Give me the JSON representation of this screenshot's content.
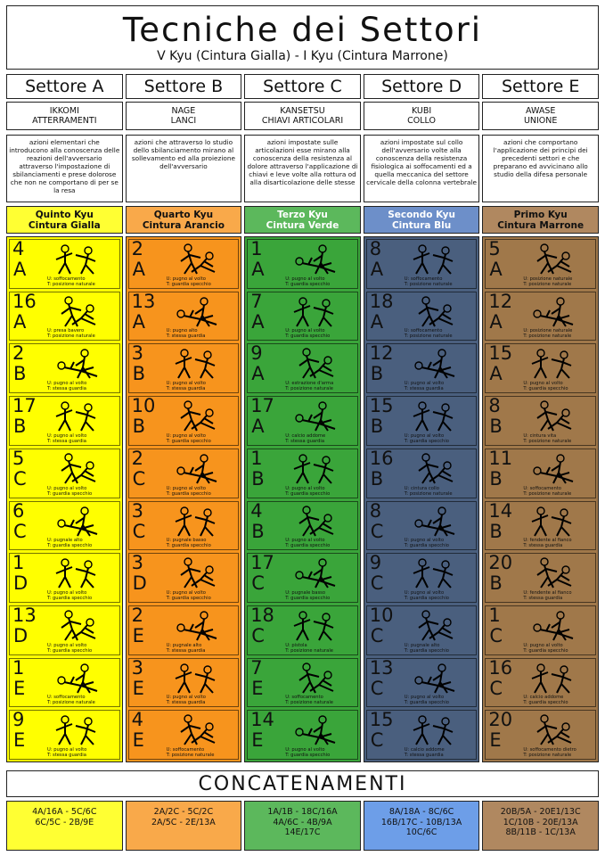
{
  "header": {
    "title": "Tecniche dei Settori",
    "subtitle": "V Kyu (Cintura Gialla)  - I Kyu (Cintura Marrone)"
  },
  "sectors": [
    {
      "name": "Settore A",
      "sub1": "IKKOMI",
      "sub2": "ATTERRAMENTI",
      "desc": "azioni elementari che introducono alla conoscenza delle reazioni dell'avversario attraverso l'impostazione di sbilanciamenti e prese dolorose che non ne comportano di per se la resa"
    },
    {
      "name": "Settore B",
      "sub1": "NAGE",
      "sub2": "LANCI",
      "desc": "azioni che attraverso lo studio dello sbilanciamento mirano al sollevamento ed alla proiezione dell'avversario"
    },
    {
      "name": "Settore C",
      "sub1": "KANSETSU",
      "sub2": "CHIAVI ARTICOLARI",
      "desc": "azioni impostate sulle articolazioni esse mirano alla conoscenza della resistenza al dolore attraverso l'applicazione di chiavi e leve volte alla rottura od alla disarticolazione delle stesse"
    },
    {
      "name": "Settore D",
      "sub1": "KUBI",
      "sub2": "COLLO",
      "desc": "azioni impostate sul collo dell'avversario volte alla conoscenza della resistenza fisiologica ai soffocamenti ed a quella meccanica del settore cervicale della colonna vertebrale"
    },
    {
      "name": "Settore E",
      "sub1": "AWASE",
      "sub2": "UNIONE",
      "desc": "azioni che comportano l'applicazione dei principi dei precedenti settori e che preparano ed avvicinano allo studio della difesa personale"
    }
  ],
  "belts": [
    {
      "l1": "Quinto Kyu",
      "l2": "Cintura Gialla",
      "color": "#ffff00",
      "hcolor": "#ffff33"
    },
    {
      "l1": "Quarto Kyu",
      "l2": "Cintura Arancio",
      "color": "#f7941d",
      "hcolor": "#f9a94a"
    },
    {
      "l1": "Terzo Kyu",
      "l2": "Cintura Verde",
      "color": "#3aa53a",
      "hcolor": "#5cb85c"
    },
    {
      "l1": "Secondo Kyu",
      "l2": "Cintura Blu",
      "color": "#4a5f7e",
      "hcolor": "#6d8fc9"
    },
    {
      "l1": "Primo Kyu",
      "l2": "Cintura Marrone",
      "color": "#a0784a",
      "hcolor": "#b08860"
    }
  ],
  "techniques": [
    [
      {
        "n": "4",
        "l": "A",
        "u": "U: soffocamento",
        "t": "T: posizione naturale"
      },
      {
        "n": "16",
        "l": "A",
        "u": "U: presa bavero",
        "t": "T: posizione naturale"
      },
      {
        "n": "2",
        "l": "B",
        "u": "U: pugno al volto",
        "t": "T: stessa guardia"
      },
      {
        "n": "17",
        "l": "B",
        "u": "U: pugno al volto",
        "t": "T: stessa guardia"
      },
      {
        "n": "5",
        "l": "C",
        "u": "U: pugno al volto",
        "t": "T: guardia specchio"
      },
      {
        "n": "6",
        "l": "C",
        "u": "U: pugnale alto",
        "t": "T: guardia specchio"
      },
      {
        "n": "1",
        "l": "D",
        "u": "U: pugno al volto",
        "t": "T: guardia specchio"
      },
      {
        "n": "13",
        "l": "D",
        "u": "U: pugno al volto",
        "t": "T: guardia specchio"
      },
      {
        "n": "1",
        "l": "E",
        "u": "U: soffocamento",
        "t": "T: posizione naturale"
      },
      {
        "n": "9",
        "l": "E",
        "u": "U: pugno al volto",
        "t": "T: stessa guardia"
      }
    ],
    [
      {
        "n": "2",
        "l": "A",
        "u": "U: pugno al volto",
        "t": "T: guardia specchio"
      },
      {
        "n": "13",
        "l": "A",
        "u": "U: pugno alto",
        "t": "T: stessa guardia"
      },
      {
        "n": "3",
        "l": "B",
        "u": "U: pugno al volto",
        "t": "T: stessa guardia"
      },
      {
        "n": "10",
        "l": "B",
        "u": "U: pugno al volto",
        "t": "T: guardia specchio"
      },
      {
        "n": "2",
        "l": "C",
        "u": "U: pugno al volto",
        "t": "T: guardia specchio"
      },
      {
        "n": "3",
        "l": "C",
        "u": "U: pugnale basso",
        "t": "T: guardia specchio"
      },
      {
        "n": "3",
        "l": "D",
        "u": "U: pugno al volto",
        "t": "T: guardia specchio"
      },
      {
        "n": "2",
        "l": "E",
        "u": "U: pugnale alto",
        "t": "T: stessa guardia"
      },
      {
        "n": "3",
        "l": "E",
        "u": "U: pugno al volto",
        "t": "T: stessa guardia"
      },
      {
        "n": "4",
        "l": "E",
        "u": "U: soffocamento",
        "t": "T: posizione naturale"
      }
    ],
    [
      {
        "n": "1",
        "l": "A",
        "u": "U: pugno al volto",
        "t": "T: guardia specchio"
      },
      {
        "n": "7",
        "l": "A",
        "u": "U: pugno al volto",
        "t": "T: guardia specchio"
      },
      {
        "n": "9",
        "l": "A",
        "u": "U: estrazione d'arma",
        "t": "T: posizione naturale"
      },
      {
        "n": "17",
        "l": "A",
        "u": "U: calcio addome",
        "t": "T: stessa guardia"
      },
      {
        "n": "1",
        "l": "B",
        "u": "U: pugno al volto",
        "t": "T: guardia specchio"
      },
      {
        "n": "4",
        "l": "B",
        "u": "U: pugno al volto",
        "t": "T: guardia specchio"
      },
      {
        "n": "17",
        "l": "C",
        "u": "U: pugnale basso",
        "t": "T: guardia specchio"
      },
      {
        "n": "18",
        "l": "C",
        "u": "U: pistola",
        "t": "T: posizione naturale"
      },
      {
        "n": "7",
        "l": "E",
        "u": "U: soffocamento",
        "t": "T: posizione naturale"
      },
      {
        "n": "14",
        "l": "E",
        "u": "U: pugno al volto",
        "t": "T: guardia specchio"
      }
    ],
    [
      {
        "n": "8",
        "l": "A",
        "u": "U: soffocamento",
        "t": "T: posizione naturale"
      },
      {
        "n": "18",
        "l": "A",
        "u": "U: soffocamento",
        "t": "T: posizione naturale"
      },
      {
        "n": "12",
        "l": "B",
        "u": "U: pugno al volto",
        "t": "T: stessa guardia"
      },
      {
        "n": "15",
        "l": "B",
        "u": "U: pugno al volto",
        "t": "T: guardia specchio"
      },
      {
        "n": "16",
        "l": "B",
        "u": "U: cintura collo",
        "t": "T: posizione naturale"
      },
      {
        "n": "8",
        "l": "C",
        "u": "U: pugno al volto",
        "t": "T: guardia specchio"
      },
      {
        "n": "9",
        "l": "C",
        "u": "U: pugno al volto",
        "t": "T: guardia specchio"
      },
      {
        "n": "10",
        "l": "C",
        "u": "U: pugnale alto",
        "t": "T: guardia specchio"
      },
      {
        "n": "13",
        "l": "C",
        "u": "U: pugno al volto",
        "t": "T: guardia specchio"
      },
      {
        "n": "15",
        "l": "C",
        "u": "U: calcio addome",
        "t": "T: stessa guardia"
      }
    ],
    [
      {
        "n": "5",
        "l": "A",
        "u": "U: posizione naturale",
        "t": "T: posizione naturale"
      },
      {
        "n": "12",
        "l": "A",
        "u": "U: posizione naturale",
        "t": "T: posizione naturale"
      },
      {
        "n": "15",
        "l": "A",
        "u": "U: pugno al volto",
        "t": "T: guardia specchio"
      },
      {
        "n": "8",
        "l": "B",
        "u": "U: cintura vita",
        "t": "T: posizione naturale"
      },
      {
        "n": "11",
        "l": "B",
        "u": "U: soffocamento",
        "t": "T: posizione naturale"
      },
      {
        "n": "14",
        "l": "B",
        "u": "U: fendente al fianco",
        "t": "T: stessa guardia"
      },
      {
        "n": "20",
        "l": "B",
        "u": "U: fendente al fianco",
        "t": "T: stessa guardia"
      },
      {
        "n": "1",
        "l": "C",
        "u": "U: pugno al volto",
        "t": "T: guardia specchio"
      },
      {
        "n": "16",
        "l": "C",
        "u": "U: calcio addome",
        "t": "T: guardia specchio"
      },
      {
        "n": "20",
        "l": "E",
        "u": "U: soffocamento dietro",
        "t": "T: posizione naturale"
      }
    ]
  ],
  "concatenamenti": {
    "title": "CONCATENAMENTI",
    "chains": [
      {
        "l1": "4A/16A - 5C/6C",
        "l2": "6C/5C - 2B/9E",
        "l3": "",
        "color": "#ffff33"
      },
      {
        "l1": "2A/2C - 5C/2C",
        "l2": "2A/5C - 2E/13A",
        "l3": "",
        "color": "#f9a94a"
      },
      {
        "l1": "1A/1B - 18C/16A",
        "l2": "4A/6C - 4B/9A",
        "l3": "14E/17C",
        "color": "#5cb85c"
      },
      {
        "l1": "8A/18A - 8C/6C",
        "l2": "16B/17C - 10B/13A",
        "l3": "10C/6C",
        "color": "#6d9ee8"
      },
      {
        "l1": "20B/5A - 20E1/13C",
        "l2": "1C/10B - 20E/13A",
        "l3": "8B/11B - 1C/13A",
        "color": "#b08860"
      }
    ]
  }
}
